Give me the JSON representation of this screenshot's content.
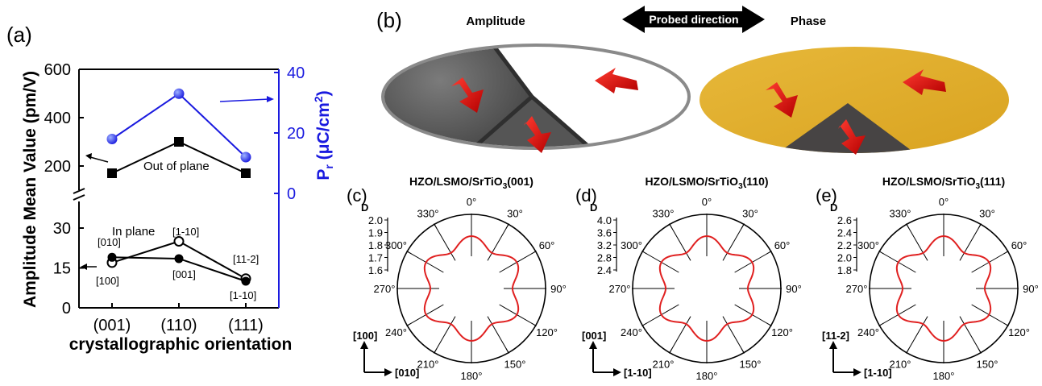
{
  "figure": {
    "panel_a": {
      "label": "(a)",
      "ylabel": "Amplitude Mean Value (pm/V)",
      "ylabel_right": "P",
      "ylabel_right_sub": "r",
      "ylabel_right_rest": " (μC/cm",
      "ylabel_right_sup": "2",
      "ylabel_right_end": ")",
      "xlabel": "crystallographic orientation",
      "x_ticks": [
        "(001)",
        "(110)",
        "(111)"
      ],
      "y_ticks_upper": [
        "200",
        "400",
        "600"
      ],
      "y_ticks_lower": [
        "0",
        "15",
        "30"
      ],
      "y_ticks_right": [
        "0",
        "20",
        "40"
      ],
      "annotations": {
        "out_of_plane": "Out of plane",
        "in_plane": "In plane",
        "d010": "[010]",
        "d100": "[100]",
        "d1m10a": "[1-10]",
        "d001": "[001]",
        "d11m2": "[11-2]",
        "d1m10b": "[1-10]"
      }
    },
    "panel_b": {
      "label": "(b)",
      "amplitude": "Amplitude",
      "phase": "Phase",
      "probed": "Probed direction"
    },
    "polar_panels": [
      {
        "label": "(c)",
        "title_main": "HZO/LSMO/SrTiO",
        "title_sub": "3",
        "title_end": "(001)",
        "dlabel": "D",
        "rticks": [
          "2.0",
          "1.9",
          "1.8",
          "1.7",
          "1.6"
        ],
        "dir_up": "[100]",
        "dir_right": "[010]"
      },
      {
        "label": "(d)",
        "title_main": "HZO/LSMO/SrTiO",
        "title_sub": "3",
        "title_end": "(110)",
        "dlabel": "D",
        "rticks": [
          "4.0",
          "3.6",
          "3.2",
          "2.8",
          "2.4"
        ],
        "dir_up": "[001]",
        "dir_right": "[1-10]"
      },
      {
        "label": "(e)",
        "title_main": "HZO/LSMO/SrTiO",
        "title_sub": "3",
        "title_end": "(111)",
        "dlabel": "D",
        "rticks": [
          "2.6",
          "2.4",
          "2.2",
          "2.0",
          "1.8"
        ],
        "dir_up": "[11-2]",
        "dir_right": "[1-10]"
      }
    ],
    "angle_labels": [
      "0°",
      "30°",
      "60°",
      "90°",
      "120°",
      "150°",
      "180°",
      "210°",
      "240°",
      "270°",
      "300°",
      "330°"
    ]
  },
  "chart_data": [
    {
      "type": "line",
      "categories": [
        "(001)",
        "(110)",
        "(111)"
      ],
      "xlabel": "crystallographic orientation",
      "ylabel": "Amplitude Mean Value (pm/V)",
      "series": [
        {
          "name": "Out of plane",
          "values": [
            170,
            300,
            170
          ]
        },
        {
          "name": "In plane [010]/[1-10]/[11-2]",
          "values": [
            17,
            25,
            11
          ]
        },
        {
          "name": "In plane [100]/[001]/[1-10]",
          "values": [
            19,
            18.5,
            10
          ]
        },
        {
          "name": "Pr",
          "values": [
            18,
            33,
            12
          ]
        }
      ],
      "colors": {
        "amplitude": "#000000",
        "pr": "#1a1adf"
      }
    }
  ]
}
